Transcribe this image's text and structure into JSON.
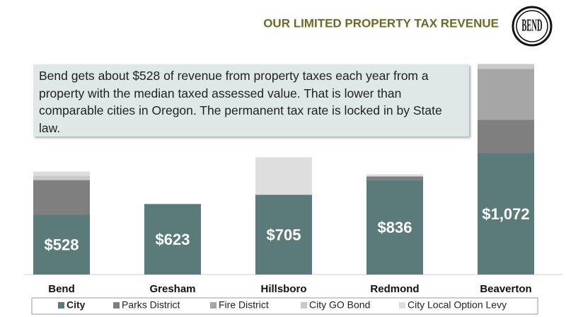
{
  "chart_data": {
    "type": "stacked_bar",
    "title": "OUR LIMITED PROPERTY TAX REVENUE",
    "logo": "BEND",
    "note": "Bend gets about $528 of revenue from property taxes each year from a property with the median taxed assessed value. That is lower than comparable cities in Oregon. The permanent tax rate is locked in by State law.",
    "categories": [
      "Bend",
      "Gresham",
      "Hillsboro",
      "Redmond",
      "Beaverton"
    ],
    "series": [
      {
        "name": "City",
        "color": "#5a7b7a",
        "values": [
          528,
          623,
          705,
          836,
          1072
        ],
        "value_labels": [
          "$528",
          "$623",
          "$705",
          "$836",
          "$1,072"
        ]
      },
      {
        "name": "Parks District",
        "color": "#7f7f7f",
        "values": [
          306,
          0,
          0,
          31,
          294
        ]
      },
      {
        "name": "Fire District",
        "color": "#a6a6a6",
        "values": [
          0,
          0,
          0,
          0,
          450
        ]
      },
      {
        "name": "City GO Bond",
        "color": "#c9c9c9",
        "values": [
          38,
          0,
          0,
          0,
          44
        ]
      },
      {
        "name": "City Local Option Levy",
        "color": "#dedede",
        "values": [
          38,
          0,
          331,
          19,
          0
        ]
      }
    ]
  }
}
